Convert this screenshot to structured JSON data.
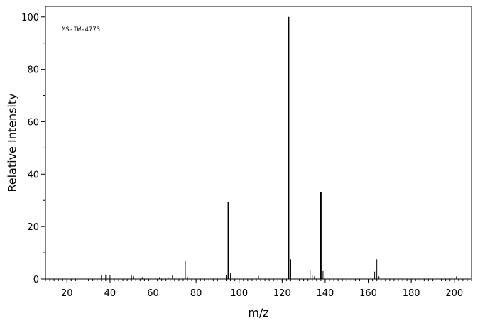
{
  "chart_data": {
    "type": "bar",
    "title": "",
    "annotation": "MS-IW-4773",
    "xlabel": "m/z",
    "ylabel": "Relative Intensity",
    "xlim": [
      10,
      208
    ],
    "ylim": [
      0,
      104
    ],
    "x_ticks": [
      20,
      40,
      60,
      80,
      100,
      120,
      140,
      160,
      180,
      200
    ],
    "y_ticks": [
      0,
      20,
      40,
      60,
      80,
      100
    ],
    "grid": false,
    "colors": {
      "bars": "#000000",
      "axes": "#000000",
      "background": "#ffffff"
    },
    "peaks": [
      {
        "mz": 27,
        "intensity": 0.8
      },
      {
        "mz": 36,
        "intensity": 1.5
      },
      {
        "mz": 38,
        "intensity": 1.7
      },
      {
        "mz": 40,
        "intensity": 1.5
      },
      {
        "mz": 50,
        "intensity": 1.3
      },
      {
        "mz": 51,
        "intensity": 1.0
      },
      {
        "mz": 55,
        "intensity": 0.7
      },
      {
        "mz": 63,
        "intensity": 0.7
      },
      {
        "mz": 67,
        "intensity": 0.8
      },
      {
        "mz": 69,
        "intensity": 1.5
      },
      {
        "mz": 75,
        "intensity": 6.8
      },
      {
        "mz": 76,
        "intensity": 0.8
      },
      {
        "mz": 93,
        "intensity": 1.0
      },
      {
        "mz": 94,
        "intensity": 1.6
      },
      {
        "mz": 95,
        "intensity": 29.5
      },
      {
        "mz": 96,
        "intensity": 2.3
      },
      {
        "mz": 109,
        "intensity": 1.2
      },
      {
        "mz": 123,
        "intensity": 100
      },
      {
        "mz": 124,
        "intensity": 7.5
      },
      {
        "mz": 133,
        "intensity": 3.5
      },
      {
        "mz": 134,
        "intensity": 1.5
      },
      {
        "mz": 135,
        "intensity": 1.0
      },
      {
        "mz": 138,
        "intensity": 33.3
      },
      {
        "mz": 139,
        "intensity": 3.0
      },
      {
        "mz": 163,
        "intensity": 2.8
      },
      {
        "mz": 164,
        "intensity": 7.5
      },
      {
        "mz": 165,
        "intensity": 1.0
      },
      {
        "mz": 201,
        "intensity": 1.0
      }
    ]
  }
}
